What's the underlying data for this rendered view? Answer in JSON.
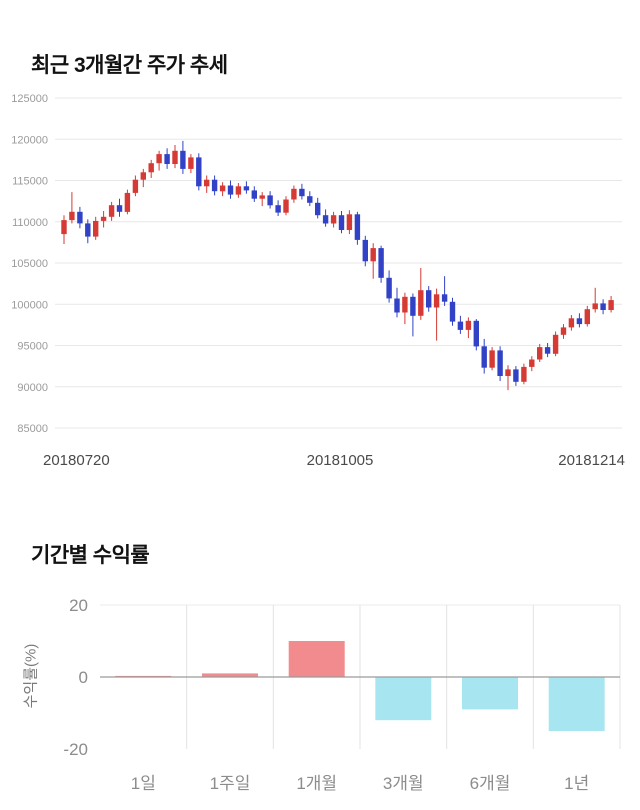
{
  "section1": {
    "title": "최근 3개월간 주가 추세"
  },
  "section2": {
    "title": "기간별 수익률"
  },
  "chart_data": [
    {
      "type": "candlestick",
      "title": "최근 3개월간 주가 추세",
      "ylim": [
        85000,
        125000
      ],
      "yticks": [
        125000,
        120000,
        115000,
        110000,
        105000,
        100000,
        95000,
        90000,
        85000
      ],
      "xtick_labels": [
        "20180720",
        "20181005",
        "20181214"
      ],
      "up_color": "#d63a35",
      "down_color": "#3142c6",
      "grid_color": "#e7e7e7",
      "tick_color": "#9b9b9b",
      "candles": [
        [
          108500,
          110800,
          107300,
          110200
        ],
        [
          110200,
          113600,
          109800,
          111200
        ],
        [
          111200,
          111800,
          109200,
          109800
        ],
        [
          109800,
          110300,
          107400,
          108200
        ],
        [
          108200,
          110600,
          107800,
          110100
        ],
        [
          110100,
          111300,
          109300,
          110600
        ],
        [
          110600,
          112400,
          110100,
          112000
        ],
        [
          112000,
          112800,
          110600,
          111200
        ],
        [
          111200,
          113900,
          110900,
          113500
        ],
        [
          113500,
          115600,
          113100,
          115100
        ],
        [
          115100,
          116400,
          114200,
          116000
        ],
        [
          116000,
          117500,
          115300,
          117100
        ],
        [
          117100,
          118600,
          116200,
          118200
        ],
        [
          118200,
          118900,
          116400,
          117000
        ],
        [
          117000,
          119300,
          116500,
          118600
        ],
        [
          118600,
          119800,
          115800,
          116400
        ],
        [
          116400,
          118200,
          115900,
          117800
        ],
        [
          117800,
          118300,
          113800,
          114300
        ],
        [
          114300,
          115600,
          113500,
          115100
        ],
        [
          115100,
          115600,
          113200,
          113700
        ],
        [
          113700,
          114800,
          113100,
          114400
        ],
        [
          114400,
          115000,
          112800,
          113300
        ],
        [
          113300,
          114700,
          112900,
          114300
        ],
        [
          114300,
          114900,
          113400,
          113800
        ],
        [
          113800,
          114300,
          112400,
          112800
        ],
        [
          112800,
          113600,
          111900,
          113200
        ],
        [
          113200,
          113700,
          111600,
          112000
        ],
        [
          112000,
          112600,
          110700,
          111100
        ],
        [
          111100,
          113100,
          110800,
          112700
        ],
        [
          112700,
          114400,
          112300,
          114000
        ],
        [
          114000,
          114600,
          112700,
          113100
        ],
        [
          113100,
          113700,
          111900,
          112300
        ],
        [
          112300,
          112900,
          110400,
          110800
        ],
        [
          110800,
          111500,
          109400,
          109800
        ],
        [
          109800,
          111200,
          109300,
          110800
        ],
        [
          110800,
          111300,
          108600,
          109000
        ],
        [
          109000,
          111400,
          108500,
          110900
        ],
        [
          110900,
          111200,
          107200,
          107800
        ],
        [
          107800,
          108300,
          104600,
          105200
        ],
        [
          105200,
          107400,
          103100,
          106800
        ],
        [
          106800,
          107100,
          102600,
          103200
        ],
        [
          103200,
          104100,
          100200,
          100700
        ],
        [
          100700,
          102000,
          98400,
          99000
        ],
        [
          99000,
          101400,
          97600,
          100900
        ],
        [
          100900,
          101300,
          96100,
          98600
        ],
        [
          98600,
          104400,
          98100,
          101700
        ],
        [
          101700,
          102200,
          99100,
          99600
        ],
        [
          99600,
          101900,
          95600,
          101200
        ],
        [
          101200,
          103400,
          99800,
          100300
        ],
        [
          100300,
          100800,
          97400,
          97900
        ],
        [
          97900,
          98600,
          96400,
          96900
        ],
        [
          96900,
          98400,
          95900,
          98000
        ],
        [
          98000,
          98200,
          94400,
          94900
        ],
        [
          94900,
          95800,
          91600,
          92300
        ],
        [
          92300,
          94800,
          92000,
          94400
        ],
        [
          94400,
          94900,
          90700,
          91300
        ],
        [
          91300,
          92600,
          89600,
          92100
        ],
        [
          92100,
          92500,
          90100,
          90600
        ],
        [
          90600,
          92800,
          90300,
          92400
        ],
        [
          92400,
          93700,
          91900,
          93300
        ],
        [
          93300,
          95200,
          93000,
          94800
        ],
        [
          94800,
          95300,
          93600,
          94000
        ],
        [
          94000,
          96700,
          93700,
          96300
        ],
        [
          96300,
          97600,
          95800,
          97200
        ],
        [
          97200,
          98700,
          96800,
          98300
        ],
        [
          98300,
          98900,
          97200,
          97600
        ],
        [
          97600,
          99800,
          97300,
          99400
        ],
        [
          99400,
          102000,
          99000,
          100100
        ],
        [
          100100,
          100600,
          98800,
          99300
        ],
        [
          99300,
          101000,
          99000,
          100500
        ]
      ]
    },
    {
      "type": "bar",
      "title": "기간별 수익률",
      "categories": [
        "1일",
        "1주일",
        "1개월",
        "3개월",
        "6개월",
        "1년"
      ],
      "values": [
        0.3,
        1,
        10,
        -12,
        -9,
        -15
      ],
      "ylabel": "수익률(%)",
      "yticks": [
        20,
        0,
        -20
      ],
      "ylim": [
        -20,
        20
      ],
      "positive_color": "#f28b8d",
      "negative_color": "#a7e6f0",
      "zero_line_color": "#9a9a9a",
      "grid_color": "#e3e3e3",
      "tick_color": "#8c8c8c"
    }
  ]
}
